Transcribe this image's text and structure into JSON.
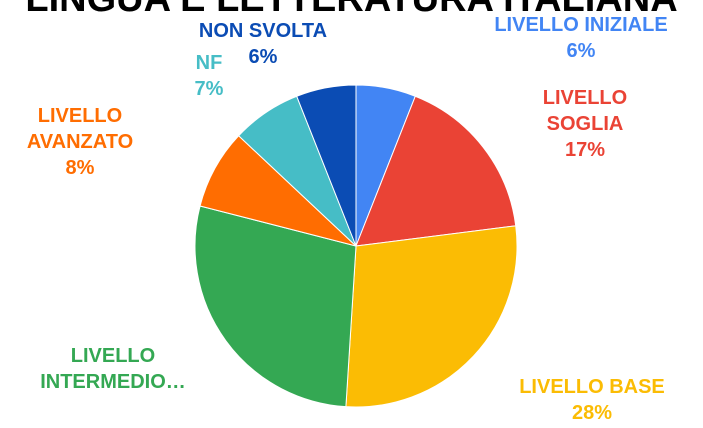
{
  "chart_data": {
    "type": "pie",
    "title": "LINGUA E LETTERATURA ITALIANA",
    "categories": [
      "LIVELLO INIZIALE",
      "LIVELLO SOGLIA",
      "LIVELLO BASE",
      "LIVELLO INTERMEDIO…",
      "LIVELLO AVANZATO",
      "NF",
      "NON SVOLTA"
    ],
    "values": [
      6,
      17,
      28,
      28,
      8,
      7,
      6
    ],
    "value_labels": [
      "6%",
      "17%",
      "28%",
      null,
      "8%",
      "7%",
      "6%"
    ],
    "colors": [
      "#4285f4",
      "#ea4335",
      "#fbbc04",
      "#34a853",
      "#ff6d01",
      "#46bdc6",
      "#0b4cb4"
    ]
  }
}
